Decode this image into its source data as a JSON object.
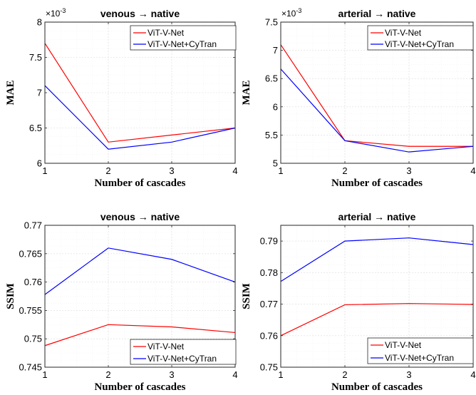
{
  "chart_data": [
    {
      "type": "line",
      "title": "venous → native",
      "xlabel": "Number of cascades",
      "ylabel": "MAE",
      "exponent_label": "×10",
      "exponent_power": "-3",
      "x": [
        1,
        2,
        3,
        4
      ],
      "xlim": [
        1,
        4
      ],
      "ylim": [
        6,
        8
      ],
      "yticks": [
        6,
        6.5,
        7,
        7.5,
        8
      ],
      "ytick_labels": [
        "6",
        "6.5",
        "7",
        "7.5",
        "8"
      ],
      "legend_position": "top-right",
      "grid": true,
      "series": [
        {
          "name": "ViT-V-Net",
          "color": "#ff0000",
          "values": [
            7.7,
            6.3,
            6.4,
            6.5
          ]
        },
        {
          "name": "ViT-V-Net+CyTran",
          "color": "#0000ff",
          "values": [
            7.1,
            6.2,
            6.3,
            6.5
          ]
        }
      ]
    },
    {
      "type": "line",
      "title": "arterial → native",
      "xlabel": "Number of cascades",
      "ylabel": "MAE",
      "exponent_label": "×10",
      "exponent_power": "-3",
      "x": [
        1,
        2,
        3,
        4
      ],
      "xlim": [
        1,
        4
      ],
      "ylim": [
        5,
        7.5
      ],
      "yticks": [
        5,
        5.5,
        6,
        6.5,
        7,
        7.5
      ],
      "ytick_labels": [
        "5",
        "5.5",
        "6",
        "6.5",
        "7",
        "7.5"
      ],
      "legend_position": "top-right",
      "grid": true,
      "series": [
        {
          "name": "ViT-V-Net",
          "color": "#ff0000",
          "values": [
            7.1,
            5.4,
            5.3,
            5.3
          ]
        },
        {
          "name": "ViT-V-Net+CyTran",
          "color": "#0000ff",
          "values": [
            6.67,
            5.4,
            5.2,
            5.3
          ]
        }
      ]
    },
    {
      "type": "line",
      "title": "venous → native",
      "xlabel": "Number of cascades",
      "ylabel": "SSIM",
      "x": [
        1,
        2,
        3,
        4
      ],
      "xlim": [
        1,
        4
      ],
      "ylim": [
        0.745,
        0.77
      ],
      "yticks": [
        0.745,
        0.75,
        0.755,
        0.76,
        0.765,
        0.77
      ],
      "ytick_labels": [
        "0.745",
        "0.75",
        "0.755",
        "0.76",
        "0.765",
        "0.77"
      ],
      "legend_position": "bottom-right",
      "grid": true,
      "series": [
        {
          "name": "ViT-V-Net",
          "color": "#ff0000",
          "values": [
            0.7488,
            0.7525,
            0.7521,
            0.7511
          ]
        },
        {
          "name": "ViT-V-Net+CyTran",
          "color": "#0000ff",
          "values": [
            0.7578,
            0.766,
            0.764,
            0.76
          ]
        }
      ]
    },
    {
      "type": "line",
      "title": "arterial → native",
      "xlabel": "Number of cascades",
      "ylabel": "SSIM",
      "x": [
        1,
        2,
        3,
        4
      ],
      "xlim": [
        1,
        4
      ],
      "ylim": [
        0.75,
        0.795
      ],
      "yticks": [
        0.75,
        0.76,
        0.77,
        0.78,
        0.79
      ],
      "ytick_labels": [
        "0.75",
        "0.76",
        "0.77",
        "0.78",
        "0.79"
      ],
      "legend_position": "bottom-right",
      "grid": true,
      "series": [
        {
          "name": "ViT-V-Net",
          "color": "#ff0000",
          "values": [
            0.76,
            0.7698,
            0.7702,
            0.7699
          ]
        },
        {
          "name": "ViT-V-Net+CyTran",
          "color": "#0000ff",
          "values": [
            0.7772,
            0.79,
            0.791,
            0.7889
          ]
        }
      ]
    }
  ]
}
